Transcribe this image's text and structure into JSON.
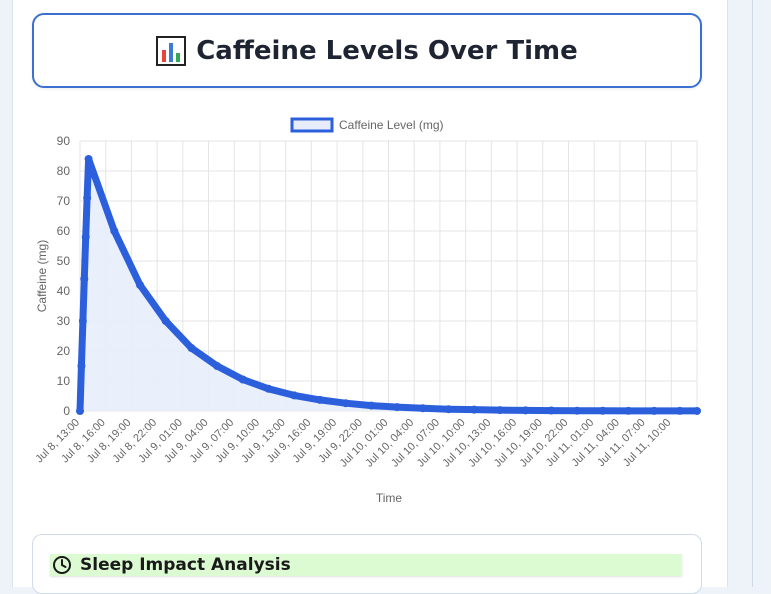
{
  "header": {
    "title": "Caffeine Levels Over Time",
    "icon": "bar-chart-icon"
  },
  "sleep_section": {
    "title": "Sleep Impact Analysis",
    "icon": "clock-icon",
    "accent": "#dcfbd2"
  },
  "colors": {
    "line": "#2c5fdb",
    "fill": "#e7edfb",
    "border": "#3b6fd1"
  },
  "chart_data": {
    "type": "area",
    "title": "",
    "xlabel": "Time",
    "ylabel": "Caffeine (mg)",
    "ylim": [
      0,
      90
    ],
    "y_ticks": [
      0,
      10,
      20,
      30,
      40,
      50,
      60,
      70,
      80,
      90
    ],
    "x_tick_labels": [
      "Jul 8, 13:00",
      "Jul 8, 16:00",
      "Jul 8, 19:00",
      "Jul 8, 22:00",
      "Jul 9, 01:00",
      "Jul 9, 04:00",
      "Jul 9, 07:00",
      "Jul 9, 10:00",
      "Jul 9, 13:00",
      "Jul 9, 16:00",
      "Jul 9, 19:00",
      "Jul 9, 22:00",
      "Jul 10, 01:00",
      "Jul 10, 04:00",
      "Jul 10, 07:00",
      "Jul 10, 10:00",
      "Jul 10, 13:00",
      "Jul 10, 16:00",
      "Jul 10, 19:00",
      "Jul 10, 22:00",
      "Jul 11, 01:00",
      "Jul 11, 04:00",
      "Jul 11, 07:00",
      "Jul 11, 10:00"
    ],
    "grid": true,
    "legend": "top",
    "series": [
      {
        "name": "Caffeine Level (mg)",
        "points": [
          {
            "t": "Jul 8, 13:00",
            "y": 0
          },
          {
            "t": "Jul 8, 13:10",
            "y": 15
          },
          {
            "t": "Jul 8, 13:20",
            "y": 30
          },
          {
            "t": "Jul 8, 13:30",
            "y": 44
          },
          {
            "t": "Jul 8, 13:40",
            "y": 58
          },
          {
            "t": "Jul 8, 13:50",
            "y": 71
          },
          {
            "t": "Jul 8, 14:00",
            "y": 84
          },
          {
            "t": "Jul 8, 17:00",
            "y": 60
          },
          {
            "t": "Jul 8, 20:00",
            "y": 42
          },
          {
            "t": "Jul 8, 23:00",
            "y": 30
          },
          {
            "t": "Jul 9, 02:00",
            "y": 21
          },
          {
            "t": "Jul 9, 05:00",
            "y": 15
          },
          {
            "t": "Jul 9, 08:00",
            "y": 10.5
          },
          {
            "t": "Jul 9, 11:00",
            "y": 7.4
          },
          {
            "t": "Jul 9, 14:00",
            "y": 5.2
          },
          {
            "t": "Jul 9, 17:00",
            "y": 3.7
          },
          {
            "t": "Jul 9, 20:00",
            "y": 2.6
          },
          {
            "t": "Jul 9, 23:00",
            "y": 1.8
          },
          {
            "t": "Jul 10, 02:00",
            "y": 1.3
          },
          {
            "t": "Jul 10, 05:00",
            "y": 0.9
          },
          {
            "t": "Jul 10, 08:00",
            "y": 0.6
          },
          {
            "t": "Jul 10, 11:00",
            "y": 0.45
          },
          {
            "t": "Jul 10, 14:00",
            "y": 0.3
          },
          {
            "t": "Jul 10, 17:00",
            "y": 0.2
          },
          {
            "t": "Jul 10, 20:00",
            "y": 0.15
          },
          {
            "t": "Jul 10, 23:00",
            "y": 0.1
          },
          {
            "t": "Jul 11, 02:00",
            "y": 0.08
          },
          {
            "t": "Jul 11, 05:00",
            "y": 0.05
          },
          {
            "t": "Jul 11, 08:00",
            "y": 0.04
          },
          {
            "t": "Jul 11, 11:00",
            "y": 0.03
          },
          {
            "t": "Jul 11, 13:00",
            "y": 0.02
          }
        ]
      }
    ]
  }
}
